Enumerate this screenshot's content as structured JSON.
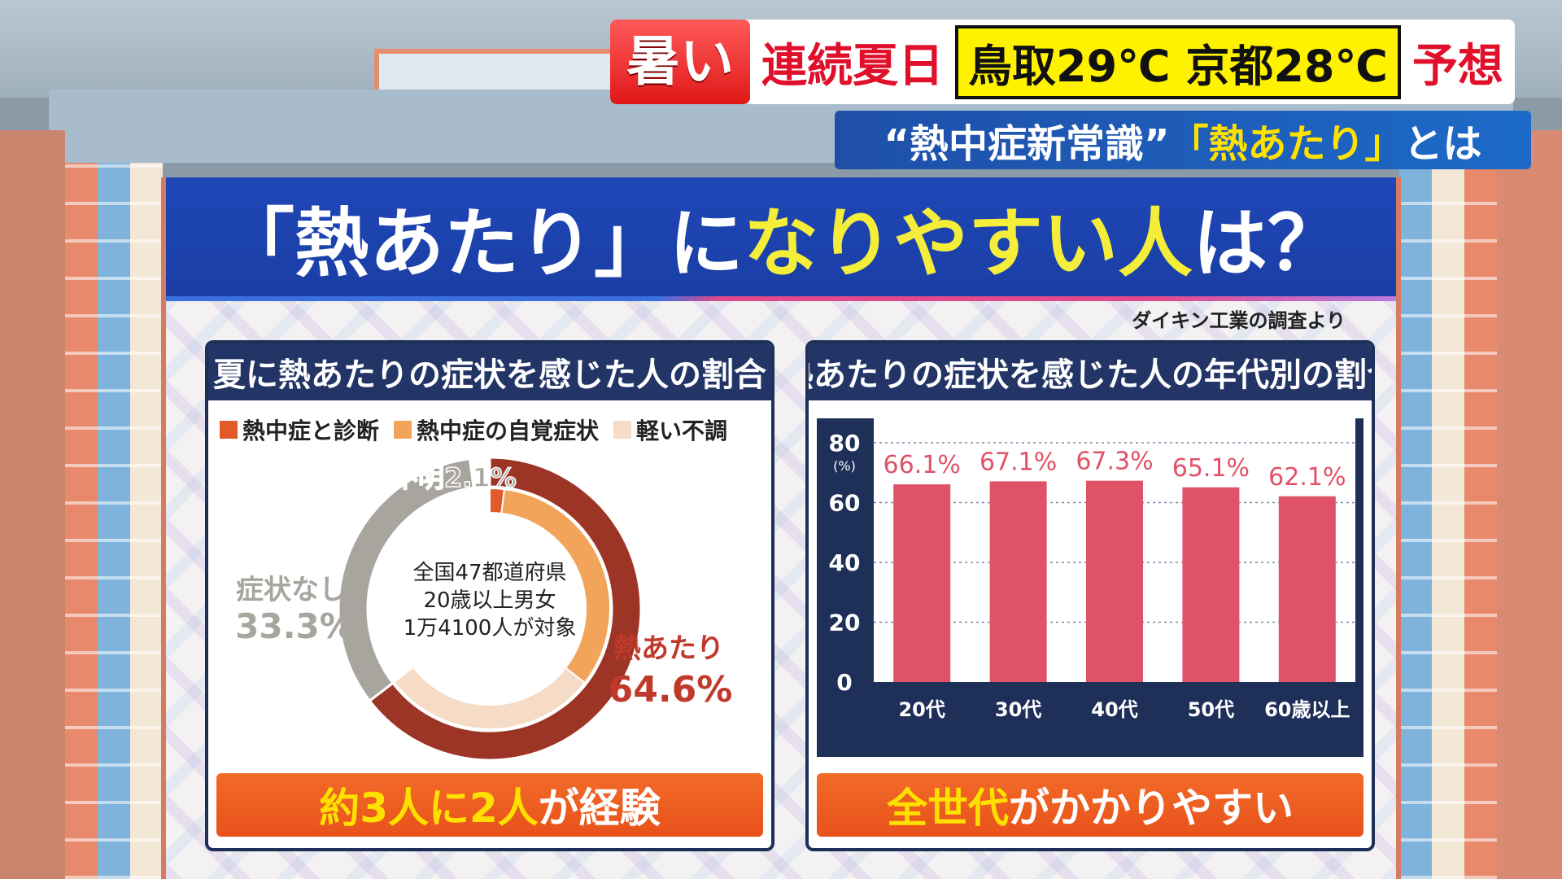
{
  "captions": {
    "hot": "暑い",
    "streak": "連続夏日",
    "temps": "鳥取29℃ 京都28℃",
    "forecast": "予想",
    "sub_white_1": "“熱中症新常識”",
    "sub_yellow": "「熱あたり」",
    "sub_white_2": "とは"
  },
  "board": {
    "title_white_1": "「熱あたり」に",
    "title_yellow": "なりやすい人",
    "title_white_2": "は？",
    "source": "ダイキン工業の調査より"
  },
  "left_panel": {
    "title": "夏に熱あたりの症状を感じた人の割合",
    "legend": [
      {
        "label": "熱中症と診断",
        "color": "#e05a2a"
      },
      {
        "label": "熱中症の自覚症状",
        "color": "#f2a45a"
      },
      {
        "label": "軽い不調",
        "color": "#f6dcc6"
      }
    ],
    "center_note": [
      "全国47都道府県",
      "20歳以上男女",
      "1万4100人が対象"
    ],
    "labels": {
      "unknown": "不明2.1%",
      "no_symptom_1": "症状なし",
      "no_symptom_2": "33.3%",
      "heat_1": "熱あたり",
      "heat_2": "64.6%"
    },
    "footer_yellow": "約3人に2人",
    "footer_white": "が経験"
  },
  "right_panel": {
    "title": "熱あたりの症状を感じた人の年代別の割合",
    "footer_yellow": "全世代",
    "footer_white": "がかかりやすい"
  },
  "chart_data": [
    {
      "type": "pie",
      "title": "夏に熱あたりの症状を感じた人の割合",
      "outer_ring": [
        {
          "label": "熱あたり",
          "value": 64.6,
          "color": "#9c3525"
        },
        {
          "label": "症状なし",
          "value": 33.3,
          "color": "#a8a59f"
        },
        {
          "label": "不明",
          "value": 2.1,
          "color": "#ffffff"
        }
      ],
      "inner_ring_breakdown": [
        {
          "label": "熱中症と診断",
          "color": "#e05a2a"
        },
        {
          "label": "熱中症の自覚症状",
          "color": "#f2a45a"
        },
        {
          "label": "軽い不調",
          "color": "#f6dcc6"
        }
      ]
    },
    {
      "type": "bar",
      "title": "熱あたりの症状を感じた人の年代別の割合",
      "categories": [
        "20代",
        "30代",
        "40代",
        "50代",
        "60歳以上"
      ],
      "values": [
        66.1,
        67.1,
        67.3,
        65.1,
        62.1
      ],
      "value_labels": [
        "66.1%",
        "67.1%",
        "67.3%",
        "65.1%",
        "62.1%"
      ],
      "ylim": [
        0,
        80
      ],
      "yticks": [
        0,
        20,
        40,
        60,
        80
      ],
      "y_unit": "(%)",
      "bar_color": "#e05268",
      "grid": true
    }
  ]
}
